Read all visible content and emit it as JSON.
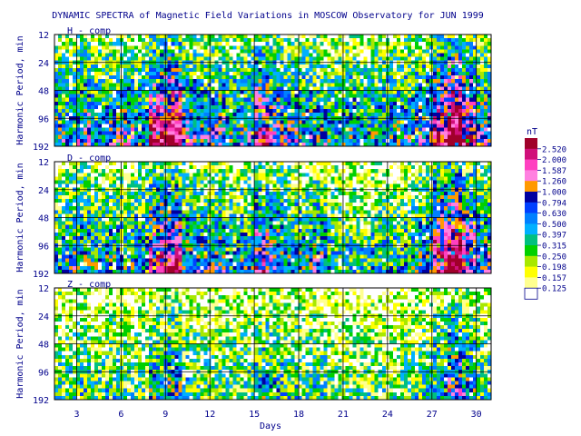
{
  "chart_data": {
    "type": "heatmap",
    "title": "DYNAMIC SPECTRA of Magnetic Field Variations in MOSCOW Observatory for JUN 1999",
    "xlabel": "Days",
    "ylabel": "Harmonic Period, min",
    "x_ticks": [
      3,
      6,
      9,
      12,
      15,
      18,
      21,
      24,
      27,
      30
    ],
    "xlim": [
      1.5,
      31
    ],
    "y_ticks": [
      12,
      24,
      48,
      96,
      192
    ],
    "y_scale": "log2",
    "grid": true,
    "panels": [
      {
        "label": "H - comp",
        "activity": [
          0.55,
          0.5,
          0.6,
          0.5,
          0.55,
          0.6,
          0.5,
          0.85,
          0.95,
          0.6,
          0.55,
          0.6,
          0.5,
          0.55,
          0.8,
          0.65,
          0.6,
          0.55,
          0.5,
          0.45,
          0.5,
          0.45,
          0.5,
          0.5,
          0.55,
          0.6,
          0.85,
          1.0,
          0.8,
          0.6,
          0.55
        ]
      },
      {
        "label": "D - comp",
        "activity": [
          0.45,
          0.5,
          0.5,
          0.45,
          0.5,
          0.45,
          0.5,
          0.75,
          0.8,
          0.55,
          0.5,
          0.55,
          0.45,
          0.5,
          0.7,
          0.6,
          0.5,
          0.5,
          0.55,
          0.4,
          0.35,
          0.35,
          0.4,
          0.4,
          0.45,
          0.55,
          0.85,
          1.0,
          0.75,
          0.55,
          0.5
        ]
      },
      {
        "label": "Z - comp",
        "activity": [
          0.35,
          0.3,
          0.35,
          0.3,
          0.35,
          0.3,
          0.3,
          0.45,
          0.5,
          0.35,
          0.3,
          0.3,
          0.3,
          0.3,
          0.45,
          0.4,
          0.35,
          0.3,
          0.35,
          0.25,
          0.25,
          0.25,
          0.25,
          0.25,
          0.3,
          0.35,
          0.5,
          0.65,
          0.5,
          0.35,
          0.3
        ]
      }
    ],
    "colorbar": {
      "unit": "nT",
      "levels": [
        "2.520",
        "2.000",
        "1.587",
        "1.260",
        "1.000",
        "0.794",
        "0.630",
        "0.500",
        "0.397",
        "0.315",
        "0.250",
        "0.198",
        "0.157",
        "0.125"
      ],
      "colors": [
        "#a0002a",
        "#d0107a",
        "#ff40c0",
        "#ff80e0",
        "#ff9900",
        "#0000a0",
        "#0040ff",
        "#0080ff",
        "#00b0ff",
        "#00c080",
        "#00d000",
        "#a8e800",
        "#ffff00",
        "#ffff90",
        "#ffffff"
      ]
    }
  }
}
